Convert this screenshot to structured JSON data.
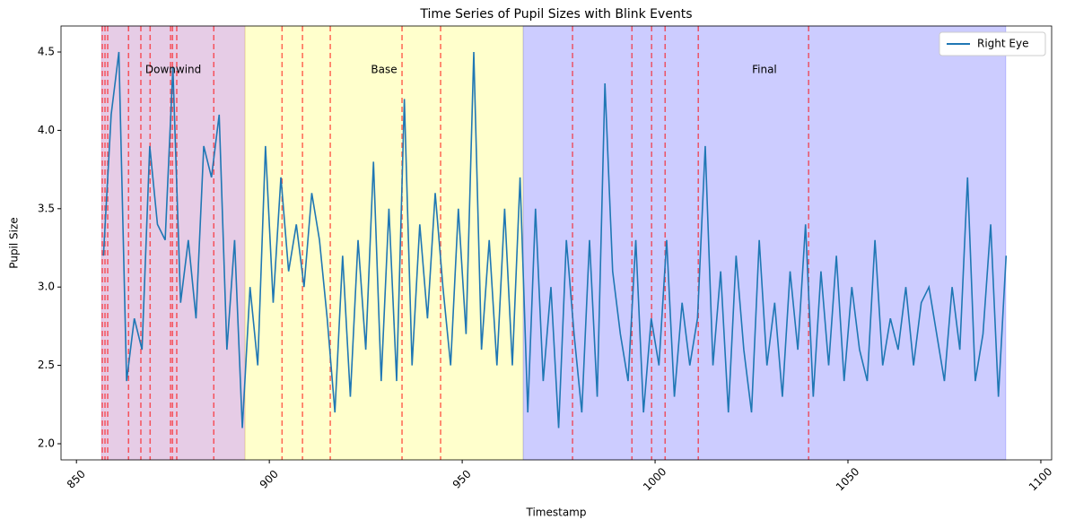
{
  "chart_data": {
    "type": "line",
    "title": "Time Series of Pupil Sizes with Blink Events",
    "xlabel": "Timestamp",
    "ylabel": "Pupil Size",
    "x": [
      857,
      859,
      861,
      863,
      865,
      867,
      869,
      871,
      873,
      875,
      877,
      879,
      881,
      883,
      885,
      887,
      889,
      891,
      893,
      895,
      897,
      899,
      901,
      903,
      905,
      907,
      909,
      911,
      913,
      915,
      917,
      919,
      921,
      923,
      925,
      927,
      929,
      931,
      933,
      935,
      937,
      939,
      941,
      943,
      945,
      947,
      949,
      951,
      953,
      955,
      957,
      959,
      961,
      963,
      965,
      967,
      969,
      971,
      973,
      975,
      977,
      979,
      981,
      983,
      985,
      987,
      989,
      991,
      993,
      995,
      997,
      999,
      1001,
      1003,
      1005,
      1007,
      1009,
      1011,
      1013,
      1015,
      1017,
      1019,
      1021,
      1023,
      1025,
      1027,
      1029,
      1031,
      1033,
      1035,
      1037,
      1039,
      1041,
      1043,
      1045,
      1047,
      1049,
      1051,
      1053,
      1055,
      1057,
      1059,
      1061,
      1063,
      1065,
      1067,
      1069,
      1071,
      1073,
      1075,
      1077,
      1079,
      1081,
      1083,
      1085,
      1087,
      1089,
      1091
    ],
    "series": [
      {
        "name": "Right Eye",
        "color": "#1f77b4",
        "values": [
          3.2,
          4.1,
          4.5,
          2.4,
          2.8,
          2.6,
          3.9,
          3.4,
          3.3,
          4.4,
          2.9,
          3.3,
          2.8,
          3.9,
          3.7,
          4.1,
          2.6,
          3.3,
          2.1,
          3.0,
          2.5,
          3.9,
          2.9,
          3.7,
          3.1,
          3.4,
          3.0,
          3.6,
          3.3,
          2.8,
          2.2,
          3.2,
          2.3,
          3.3,
          2.6,
          3.8,
          2.4,
          3.5,
          2.4,
          4.2,
          2.5,
          3.4,
          2.8,
          3.6,
          3.0,
          2.5,
          3.5,
          2.7,
          4.5,
          2.6,
          3.3,
          2.5,
          3.5,
          2.5,
          3.7,
          2.2,
          3.5,
          2.4,
          3.0,
          2.1,
          3.3,
          2.7,
          2.2,
          3.3,
          2.3,
          4.3,
          3.1,
          2.7,
          2.4,
          3.3,
          2.2,
          2.8,
          2.5,
          3.3,
          2.3,
          2.9,
          2.5,
          2.8,
          3.9,
          2.5,
          3.1,
          2.2,
          3.2,
          2.6,
          2.2,
          3.3,
          2.5,
          2.9,
          2.3,
          3.1,
          2.6,
          3.4,
          2.3,
          3.1,
          2.5,
          3.2,
          2.4,
          3.0,
          2.6,
          2.4,
          3.3,
          2.5,
          2.8,
          2.6,
          3.0,
          2.5,
          2.9,
          3.0,
          2.7,
          2.4,
          3.0,
          2.6,
          3.7,
          2.4,
          2.7,
          3.4,
          2.3,
          3.2
        ]
      }
    ],
    "phases": [
      {
        "label": "Downwind",
        "start": 856.5,
        "end": 893.7,
        "color": "#800080"
      },
      {
        "label": "Base",
        "start": 893.7,
        "end": 965.8,
        "color": "#ffff00"
      },
      {
        "label": "Final",
        "start": 965.8,
        "end": 1090.9,
        "color": "#0000ff"
      }
    ],
    "blinks": [
      856.7,
      857.4,
      858.1,
      863.5,
      866.7,
      869.1,
      874.4,
      874.9,
      876.0,
      885.6,
      903.3,
      908.6,
      915.8,
      934.4,
      944.4,
      978.6,
      994.0,
      999.1,
      1002.6,
      1011.2,
      1039.8
    ],
    "blink_color": "#ff0000",
    "xlim": [
      846,
      1102.8
    ],
    "xticks": [
      850,
      900,
      950,
      1000,
      1050,
      1100
    ],
    "ylim": [
      1.897,
      4.666
    ],
    "yticks": [
      {
        "value": 2,
        "label": "2.0"
      },
      2.5,
      {
        "value": 3,
        "label": "3.0"
      },
      3.5,
      {
        "value": 4,
        "label": "4.0"
      },
      4.5
    ],
    "legend": "upper right"
  }
}
